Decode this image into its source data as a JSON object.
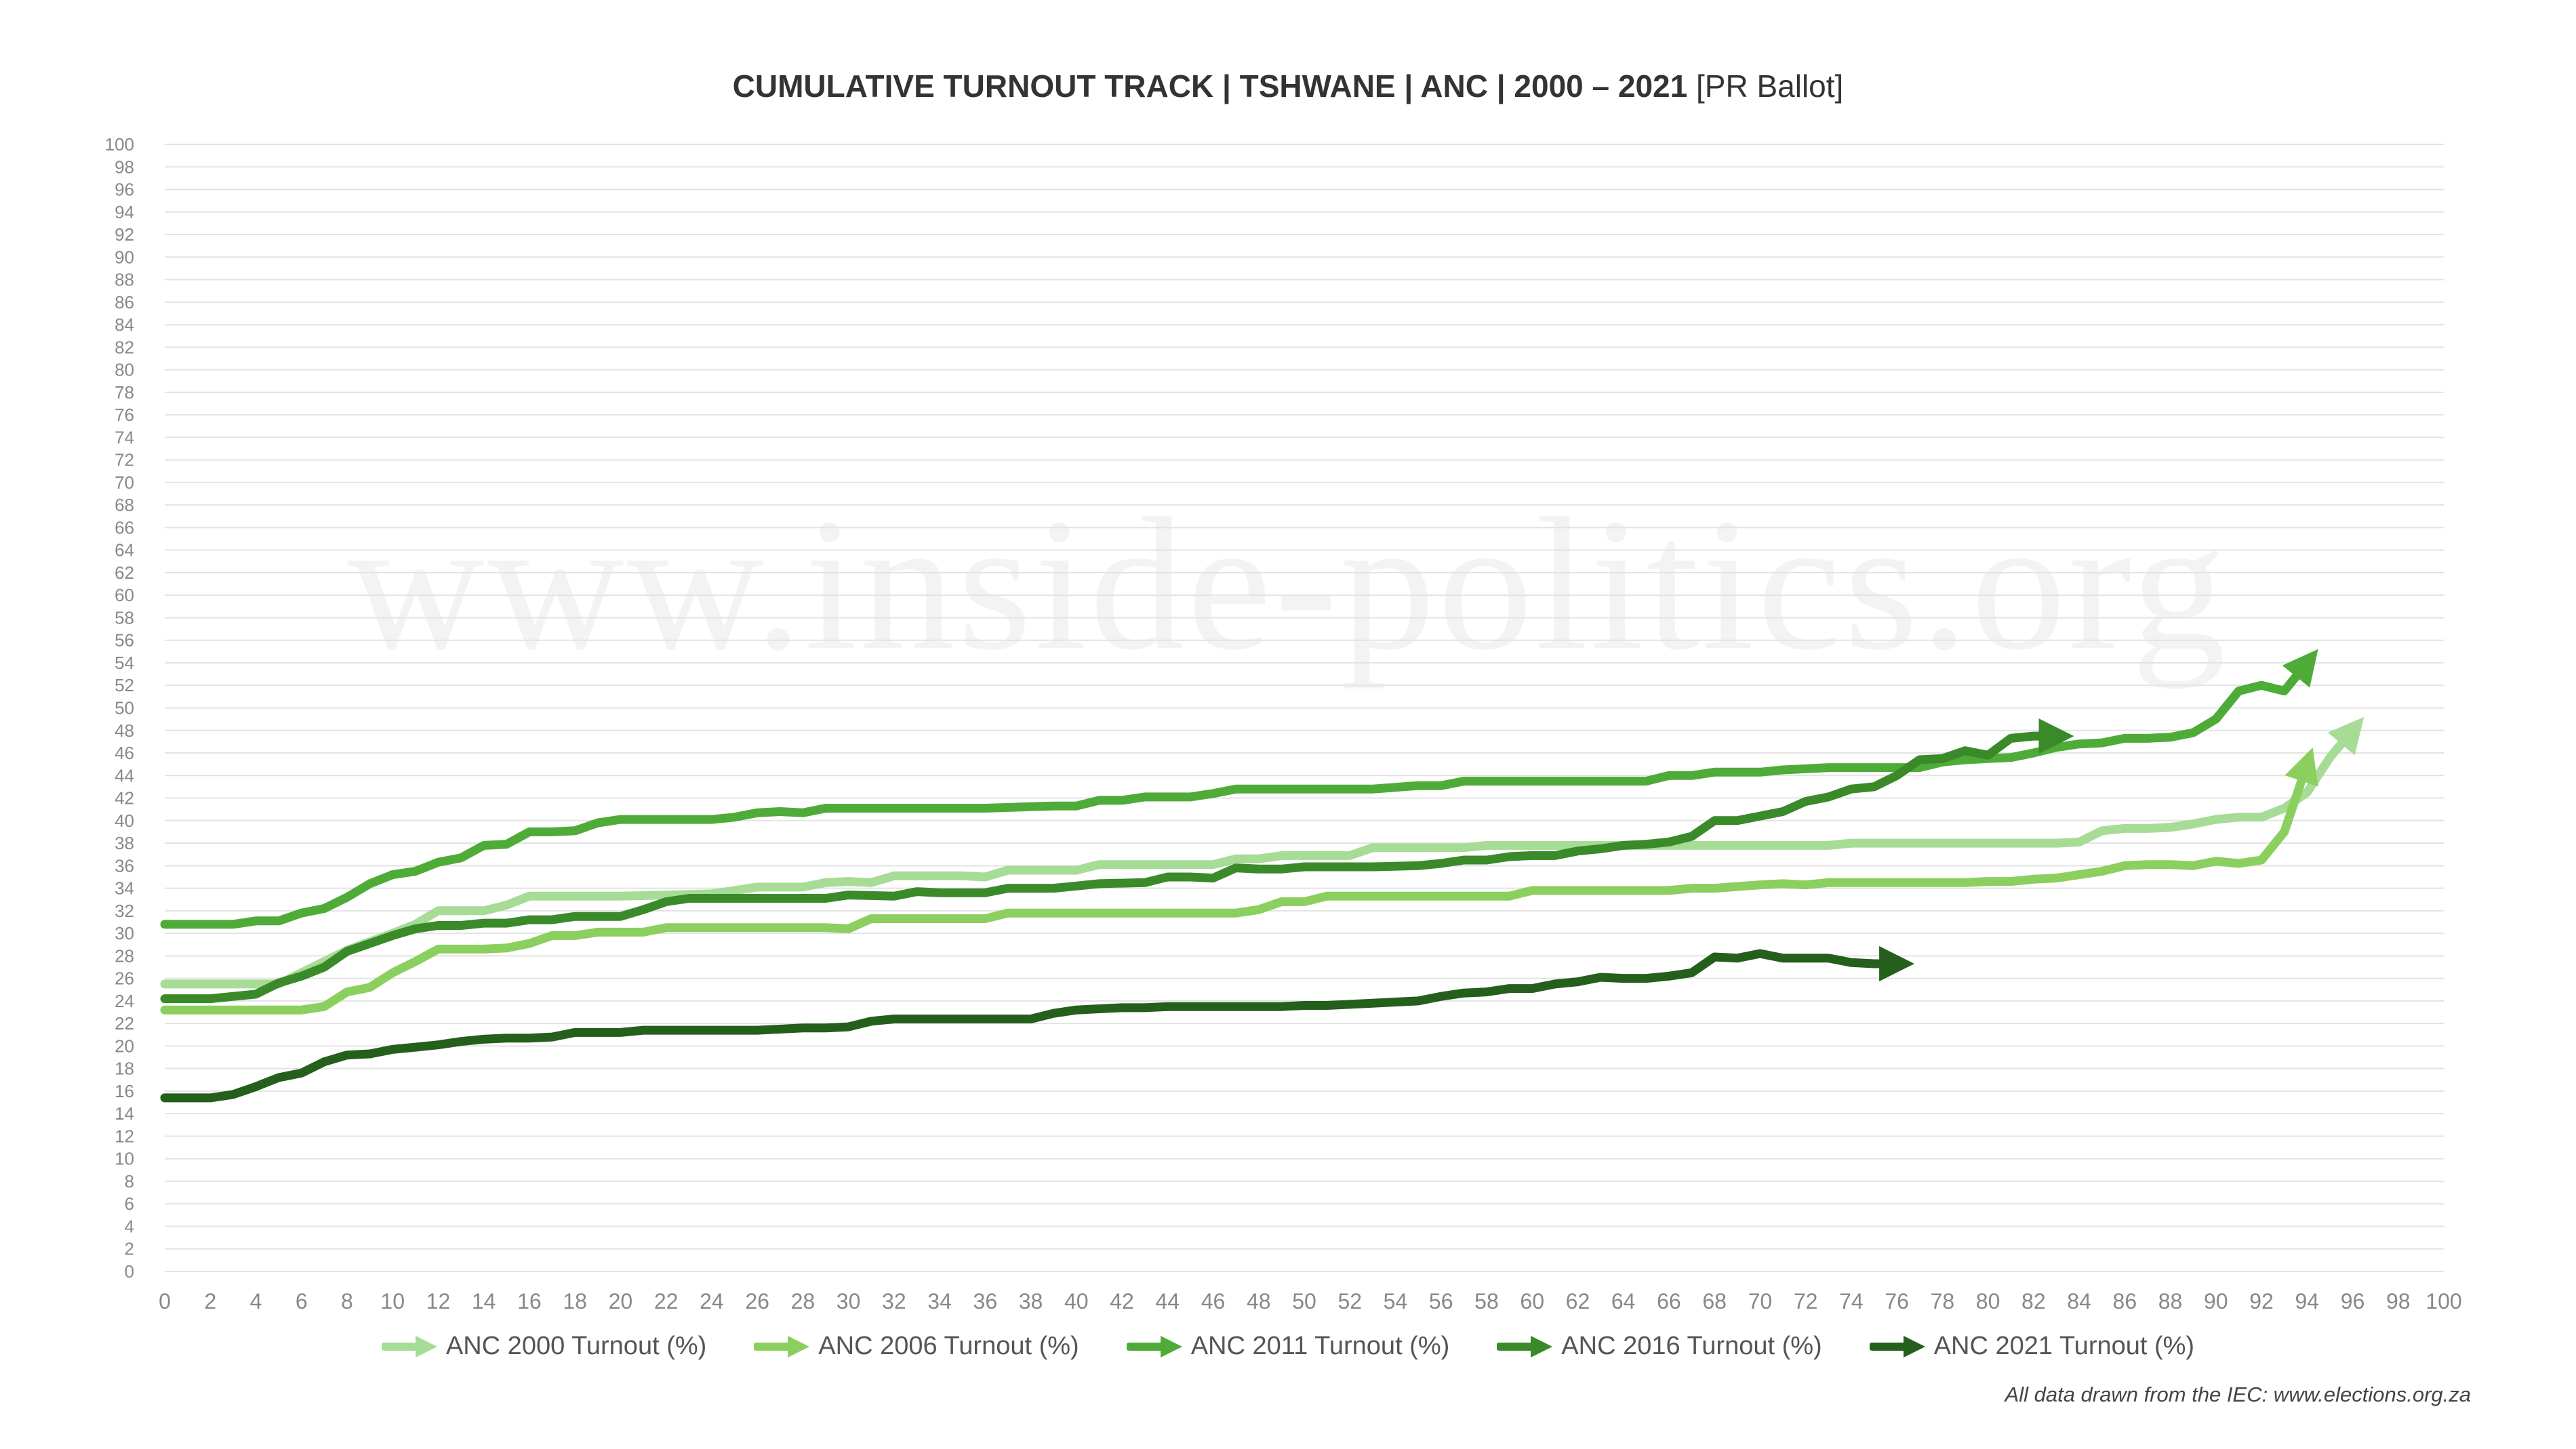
{
  "chart_data": {
    "type": "line",
    "title": "CUMULATIVE TURNOUT TRACK | TSHWANE | ANC | 2000 – 2021",
    "title_suffix": "[PR Ballot]",
    "xlabel": "",
    "ylabel": "",
    "xlim": [
      0,
      100
    ],
    "ylim": [
      0,
      100
    ],
    "x_ticks": [
      0,
      2,
      4,
      6,
      8,
      10,
      12,
      14,
      16,
      18,
      20,
      22,
      24,
      26,
      28,
      30,
      32,
      34,
      36,
      38,
      40,
      42,
      44,
      46,
      48,
      50,
      52,
      54,
      56,
      58,
      60,
      62,
      64,
      66,
      68,
      70,
      72,
      74,
      76,
      78,
      80,
      82,
      84,
      86,
      88,
      90,
      92,
      94,
      96,
      98,
      100
    ],
    "y_ticks": [
      0,
      2,
      4,
      6,
      8,
      10,
      12,
      14,
      16,
      18,
      20,
      22,
      24,
      26,
      28,
      30,
      32,
      34,
      36,
      38,
      40,
      42,
      44,
      46,
      48,
      50,
      52,
      54,
      56,
      58,
      60,
      62,
      64,
      66,
      68,
      70,
      72,
      74,
      76,
      78,
      80,
      82,
      84,
      86,
      88,
      90,
      92,
      94,
      96,
      98,
      100
    ],
    "grid": true,
    "legend_position": "bottom",
    "series": [
      {
        "name": "ANC 2000 Turnout (%)",
        "color": "#a6dc96",
        "x": [
          0,
          5,
          6,
          8,
          10,
          11,
          12,
          13,
          14,
          15,
          16,
          20,
          24,
          25,
          26,
          28,
          29,
          30,
          31,
          32,
          35,
          36,
          37,
          40,
          41,
          46,
          47,
          48,
          49,
          50,
          52,
          53,
          57,
          58,
          70,
          73,
          74,
          83,
          84,
          85,
          86,
          87,
          88,
          89,
          90,
          91,
          92,
          93,
          94,
          95,
          96
        ],
        "y": [
          25.5,
          25.5,
          26.5,
          28.5,
          30,
          30.8,
          32,
          32,
          32,
          32.5,
          33.3,
          33.3,
          33.5,
          33.8,
          34.1,
          34.1,
          34.5,
          34.6,
          34.5,
          35.1,
          35.1,
          35,
          35.6,
          35.6,
          36.1,
          36.1,
          36.6,
          36.6,
          36.9,
          36.9,
          36.9,
          37.6,
          37.6,
          37.8,
          37.8,
          37.8,
          38,
          38,
          38.1,
          39.1,
          39.3,
          39.3,
          39.4,
          39.7,
          40.1,
          40.3,
          40.3,
          41.1,
          42.5,
          45.6,
          48
        ]
      },
      {
        "name": "ANC 2006 Turnout (%)",
        "color": "#8bcf5e",
        "x": [
          0,
          6,
          7,
          8,
          9,
          10,
          11,
          12,
          13,
          14,
          15,
          16,
          17,
          18,
          19,
          20,
          21,
          22,
          28,
          29,
          30,
          31,
          32,
          36,
          37,
          47,
          48,
          49,
          50,
          51,
          53,
          59,
          60,
          61,
          66,
          67,
          68,
          70,
          71,
          72,
          73,
          74,
          79,
          80,
          81,
          82,
          83,
          84,
          85,
          86,
          87,
          88,
          89,
          90,
          91,
          92,
          93,
          94
        ],
        "y": [
          23.2,
          23.2,
          23.5,
          24.8,
          25.2,
          26.5,
          27.5,
          28.6,
          28.6,
          28.6,
          28.7,
          29.1,
          29.8,
          29.8,
          30.1,
          30.1,
          30.1,
          30.5,
          30.5,
          30.5,
          30.4,
          31.3,
          31.3,
          31.3,
          31.8,
          31.8,
          32.1,
          32.8,
          32.8,
          33.3,
          33.3,
          33.3,
          33.8,
          33.8,
          33.8,
          34,
          34,
          34.3,
          34.4,
          34.3,
          34.5,
          34.5,
          34.5,
          34.6,
          34.6,
          34.8,
          34.9,
          35.2,
          35.5,
          36,
          36.1,
          36.1,
          36,
          36.4,
          36.2,
          36.5,
          39,
          45
        ]
      },
      {
        "name": "ANC 2011 Turnout (%)",
        "color": "#4fab38",
        "x": [
          0,
          3,
          4,
          5,
          6,
          7,
          8,
          9,
          10,
          11,
          12,
          13,
          14,
          15,
          16,
          17,
          18,
          19,
          20,
          21,
          24,
          25,
          26,
          27,
          28,
          29,
          30,
          36,
          39,
          40,
          41,
          42,
          43,
          44,
          45,
          46,
          47,
          48,
          52,
          53,
          55,
          56,
          57,
          64,
          65,
          66,
          67,
          68,
          70,
          71,
          73,
          77,
          78,
          79,
          80,
          81,
          82,
          83,
          84,
          85,
          86,
          87,
          88,
          89,
          90,
          91,
          92,
          93,
          94
        ],
        "y": [
          30.8,
          30.8,
          31.1,
          31.1,
          31.8,
          32.2,
          33.2,
          34.4,
          35.2,
          35.5,
          36.3,
          36.7,
          37.8,
          37.9,
          39,
          39,
          39.1,
          39.8,
          40.1,
          40.1,
          40.1,
          40.3,
          40.7,
          40.8,
          40.7,
          41.1,
          41.1,
          41.1,
          41.3,
          41.3,
          41.8,
          41.8,
          42.1,
          42.1,
          42.1,
          42.4,
          42.8,
          42.8,
          42.8,
          42.8,
          43.1,
          43.1,
          43.5,
          43.5,
          43.5,
          44,
          44,
          44.3,
          44.3,
          44.5,
          44.7,
          44.7,
          45.2,
          45.4,
          45.5,
          45.6,
          46,
          46.5,
          46.8,
          46.9,
          47.3,
          47.3,
          47.4,
          47.8,
          49,
          51.5,
          52,
          51.5,
          54
        ]
      },
      {
        "name": "ANC 2016 Turnout (%)",
        "color": "#3a8a2a",
        "x": [
          0,
          2,
          3,
          4,
          5,
          6,
          7,
          8,
          9,
          10,
          11,
          12,
          13,
          14,
          15,
          16,
          17,
          18,
          19,
          20,
          21,
          22,
          23,
          24,
          25,
          28,
          29,
          30,
          32,
          33,
          34,
          36,
          37,
          39,
          40,
          41,
          43,
          44,
          45,
          46,
          47,
          48,
          49,
          50,
          51,
          52,
          53,
          55,
          56,
          57,
          58,
          59,
          60,
          61,
          62,
          63,
          64,
          65,
          66,
          67,
          68,
          69,
          70,
          71,
          72,
          73,
          74,
          75,
          76,
          77,
          78,
          79,
          80,
          81,
          82,
          83
        ],
        "y": [
          24.2,
          24.2,
          24.4,
          24.6,
          25.6,
          26.2,
          27,
          28.4,
          29.1,
          29.8,
          30.4,
          30.7,
          30.7,
          30.9,
          30.9,
          31.2,
          31.2,
          31.5,
          31.5,
          31.5,
          32.1,
          32.8,
          33.1,
          33.1,
          33.1,
          33.1,
          33.1,
          33.4,
          33.3,
          33.7,
          33.6,
          33.6,
          34,
          34,
          34.2,
          34.4,
          34.5,
          35,
          35,
          34.9,
          35.8,
          35.7,
          35.7,
          35.9,
          35.9,
          35.9,
          35.9,
          36,
          36.2,
          36.5,
          36.5,
          36.8,
          36.9,
          36.9,
          37.3,
          37.5,
          37.8,
          37.9,
          38.1,
          38.6,
          40,
          40,
          40.4,
          40.8,
          41.7,
          42.1,
          42.8,
          43,
          44,
          45.4,
          45.5,
          46.2,
          45.8,
          47.3,
          47.5,
          47.5
        ]
      },
      {
        "name": "ANC 2021 Turnout (%)",
        "color": "#245f1b",
        "x": [
          0,
          2,
          3,
          4,
          5,
          6,
          7,
          8,
          9,
          10,
          11,
          12,
          13,
          14,
          15,
          16,
          17,
          18,
          19,
          20,
          21,
          22,
          25,
          26,
          28,
          29,
          30,
          31,
          32,
          36,
          37,
          38,
          39,
          40,
          41,
          42,
          43,
          44,
          48,
          49,
          50,
          51,
          52,
          53,
          54,
          55,
          56,
          57,
          58,
          59,
          60,
          61,
          62,
          63,
          64,
          65,
          66,
          67,
          68,
          69,
          70,
          71,
          72,
          73,
          74,
          75,
          76
        ],
        "y": [
          15.4,
          15.4,
          15.7,
          16.4,
          17.2,
          17.6,
          18.6,
          19.2,
          19.3,
          19.7,
          19.9,
          20.1,
          20.4,
          20.6,
          20.7,
          20.7,
          20.8,
          21.2,
          21.2,
          21.2,
          21.4,
          21.4,
          21.4,
          21.4,
          21.6,
          21.6,
          21.7,
          22.2,
          22.4,
          22.4,
          22.4,
          22.4,
          22.9,
          23.2,
          23.3,
          23.4,
          23.4,
          23.5,
          23.5,
          23.5,
          23.6,
          23.6,
          23.7,
          23.8,
          23.9,
          24,
          24.4,
          24.7,
          24.8,
          25.1,
          25.1,
          25.5,
          25.7,
          26.1,
          26,
          26,
          26.2,
          26.5,
          27.9,
          27.8,
          28.2,
          27.8,
          27.8,
          27.8,
          27.4,
          27.3,
          27.3
        ]
      }
    ],
    "watermark": "www.inside-politics.org",
    "source_note": "All data drawn from the IEC: www.elections.org.za",
    "colors": {
      "gridline": "#e3e3e3",
      "tick_label": "#888888",
      "title": "#333333"
    }
  }
}
